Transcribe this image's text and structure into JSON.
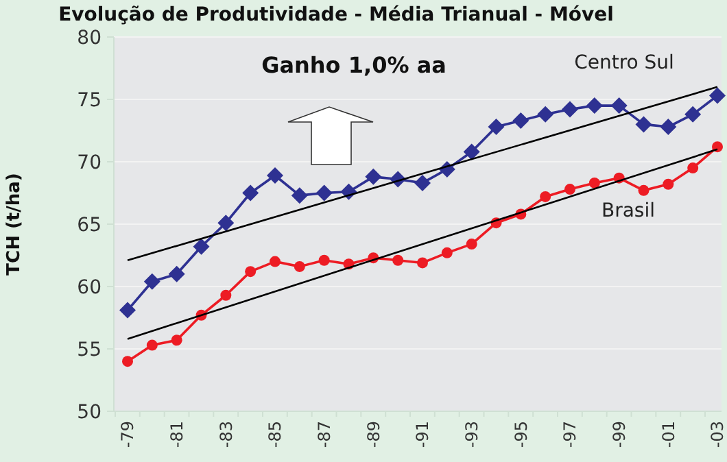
{
  "chart_data": {
    "type": "line",
    "title": "Evolução de Produtividade - Média Trianual - Móvel",
    "ylabel": "TCH (t/ha)",
    "categories": [
      "-79",
      null,
      "-81",
      null,
      "-83",
      null,
      "-85",
      null,
      "-87",
      null,
      "-89",
      null,
      "-91",
      null,
      "-93",
      null,
      "-95",
      null,
      "-97",
      null,
      "-99",
      null,
      "-01",
      null,
      "-03"
    ],
    "ylim": [
      50,
      80
    ],
    "yticks": [
      50,
      55,
      60,
      65,
      70,
      75,
      80
    ],
    "grid": "y",
    "annotations": [
      "Ganho 1,0% aa"
    ],
    "series": [
      {
        "name": "Centro Sul",
        "color": "#2e3192",
        "marker": "diamond",
        "values": [
          58.1,
          60.4,
          61.0,
          63.2,
          65.1,
          67.5,
          68.9,
          67.3,
          67.5,
          67.6,
          68.8,
          68.6,
          68.3,
          69.4,
          70.8,
          72.8,
          73.3,
          73.8,
          74.2,
          74.5,
          74.5,
          73.0,
          72.8,
          73.8,
          75.3
        ]
      },
      {
        "name": "Brasil",
        "color": "#ed1c24",
        "marker": "circle",
        "values": [
          54.0,
          55.3,
          55.7,
          57.7,
          59.3,
          61.2,
          62.0,
          61.6,
          62.1,
          61.8,
          62.3,
          62.1,
          61.9,
          62.7,
          63.4,
          65.1,
          65.8,
          67.2,
          67.8,
          68.3,
          68.7,
          67.7,
          68.2,
          69.5,
          71.2
        ]
      },
      {
        "color": "#000000",
        "marker": "none",
        "x": [
          "-79",
          "-03"
        ],
        "values": [
          62.1,
          76.0
        ]
      },
      {
        "color": "#000000",
        "marker": "none",
        "x": [
          "-79",
          "-03"
        ],
        "values": [
          55.8,
          71.0
        ]
      }
    ]
  }
}
